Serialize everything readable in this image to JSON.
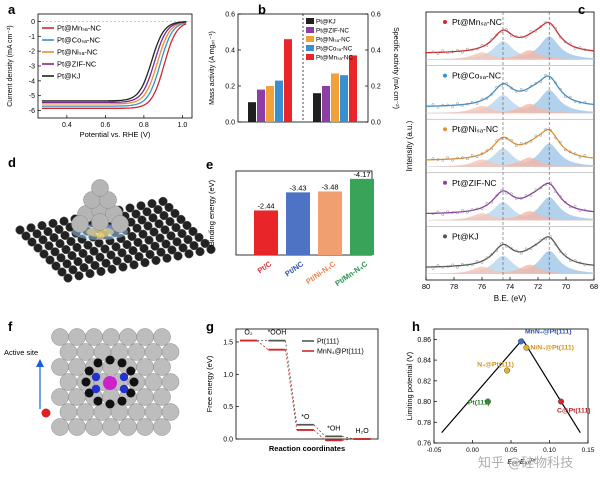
{
  "panels": {
    "a": {
      "label": "a",
      "chart": {
        "type": "line",
        "xlabel": "Potential vs. RHE (V)",
        "ylabel": "Current density (mA cm⁻²)",
        "xlim": [
          0.25,
          1.05
        ],
        "ylim": [
          -6.5,
          0.5
        ],
        "xticks": [
          "0.4",
          "0.6",
          "0.8",
          "1.0"
        ],
        "yticks": [
          "0",
          "-1",
          "-2",
          "-3",
          "-4",
          "-5",
          "-6"
        ],
        "legend_position": "top-left",
        "series": [
          {
            "name": "Pt@Mnₛₐ-NC",
            "color": "#d6262a",
            "limit": -5.85,
            "half_wave": 0.905
          },
          {
            "name": "Pt@Coₛₐ-NC",
            "color": "#3a8fd1",
            "limit": -5.7,
            "half_wave": 0.885
          },
          {
            "name": "Pt@Niₛₐ-NC",
            "color": "#e8902f",
            "limit": -5.55,
            "half_wave": 0.87
          },
          {
            "name": "Pt@ZIF-NC",
            "color": "#7b2a8c",
            "limit": -5.45,
            "half_wave": 0.855
          },
          {
            "name": "Pt@KJ",
            "color": "#222222",
            "limit": -5.35,
            "half_wave": 0.84
          }
        ]
      }
    },
    "b": {
      "label": "b",
      "chart": {
        "type": "bar",
        "ylabel_left": "Mass activity (A mgₚₜ⁻¹)",
        "ylabel_right": "Specific activity (mA cm⁻²)",
        "ylim_left": [
          0,
          0.6
        ],
        "ylim_right": [
          0,
          0.6
        ],
        "yticks_left": [
          "0.0",
          "0.2",
          "0.4",
          "0.6"
        ],
        "yticks_right": [
          "0.0",
          "0.2",
          "0.4",
          "0.6"
        ],
        "legend": [
          "Pt@KJ",
          "Pt@ZIF-NC",
          "Pt@Niₛₐ-NC",
          "Pt@Coₛₐ-NC",
          "Pt@Mnₛₐ-NC"
        ],
        "colors": [
          "#1f1f1f",
          "#8d3da6",
          "#f0a13a",
          "#3a8fd1",
          "#e8262a"
        ],
        "series": [
          {
            "group": "mass",
            "values": [
              0.11,
              0.18,
              0.2,
              0.23,
              0.46
            ]
          },
          {
            "group": "specific",
            "values": [
              0.16,
              0.2,
              0.27,
              0.26,
              0.37
            ]
          }
        ]
      }
    },
    "c": {
      "label": "c",
      "chart": {
        "type": "line",
        "xlabel": "B.E. (eV)",
        "ylabel": "Intensity (a.u.)",
        "xlim": [
          80,
          68
        ],
        "xticks": [
          "80",
          "78",
          "76",
          "74",
          "72",
          "70",
          "68"
        ],
        "peaks": [
          74.5,
          71.2
        ],
        "series": [
          {
            "name": "Pt@Mnₛₐ-NC",
            "color": "#d6262a"
          },
          {
            "name": "Pt@Coₛₐ-NC",
            "color": "#3a8fd1"
          },
          {
            "name": "Pt@Niₛₐ-NC",
            "color": "#e8902f"
          },
          {
            "name": "Pt@ZIF-NC",
            "color": "#8d3da6"
          },
          {
            "name": "Pt@KJ",
            "color": "#555555"
          }
        ]
      }
    },
    "d": {
      "label": "d"
    },
    "e": {
      "label": "e",
      "chart": {
        "type": "bar",
        "ylabel": "Binding energy (eV)",
        "ylim": [
          0,
          -4.6
        ],
        "categories": [
          "Pt/C",
          "Pt/NC",
          "Pt/Ni-N₄C",
          "Pt/Mn-N₄C"
        ],
        "values": [
          -2.44,
          -3.43,
          -3.48,
          -4.17
        ],
        "value_labels": [
          "-2.44",
          "-3.43",
          "-3.48",
          "-4.17"
        ],
        "colors": [
          "#e8262a",
          "#4f73c4",
          "#f0a070",
          "#3aa35a"
        ],
        "label_colors": [
          "#e03030",
          "#3355bb",
          "#f08050",
          "#2a9050"
        ]
      }
    },
    "f": {
      "label": "f",
      "annotation": "Active site"
    },
    "g": {
      "label": "g",
      "chart": {
        "type": "line",
        "xlabel": "Reaction coordinates",
        "ylabel": "Free energy (eV)",
        "ylim": [
          0,
          1.7
        ],
        "yticks": [
          "0.0",
          "0.5",
          "1.0",
          "1.5"
        ],
        "state_labels": [
          "O₂",
          "*OOH",
          "*O",
          "*OH",
          "H₂O"
        ],
        "series": [
          {
            "name": "Pt(111)",
            "color": "#555555",
            "values": [
              1.52,
              1.52,
              0.22,
              0.04,
              0.0
            ]
          },
          {
            "name": "MnN₄@Pt(111)",
            "color": "#d6262a",
            "values": [
              1.52,
              1.38,
              0.14,
              -0.02,
              0.0
            ]
          }
        ]
      }
    },
    "h": {
      "label": "h",
      "chart": {
        "type": "scatter",
        "ylabel": "Limiting potential (V)",
        "xlabel": "Eₒₕ-Eₒₕᴾᵗ",
        "xlim": [
          -0.05,
          0.15
        ],
        "ylim": [
          0.76,
          0.87
        ],
        "xticks": [
          "-0.05",
          "0.00",
          "0.05",
          "0.10",
          "0.15"
        ],
        "yticks": [
          "0.76",
          "0.78",
          "0.80",
          "0.82",
          "0.84",
          "0.86"
        ],
        "points": [
          {
            "name": "Pt(111)",
            "x": 0.02,
            "y": 0.8,
            "color": "#3a8f3a",
            "text_color": "#2a7a2a"
          },
          {
            "name": "N₄@Pt(111)",
            "x": 0.045,
            "y": 0.83,
            "color": "#e0b030",
            "text_color": "#d09020"
          },
          {
            "name": "MnN₄@Pt(111)",
            "x": 0.063,
            "y": 0.858,
            "color": "#3a6fd1",
            "text_color": "#2a4fb1"
          },
          {
            "name": "NiN₄@Pt(111)",
            "x": 0.07,
            "y": 0.852,
            "color": "#e0b030",
            "text_color": "#d09020"
          },
          {
            "name": "C@Pt(111)",
            "x": 0.115,
            "y": 0.8,
            "color": "#d6262a",
            "text_color": "#c02020"
          }
        ],
        "apex": {
          "x": 0.065,
          "y": 0.86
        }
      }
    }
  },
  "watermark": "知乎 @硅物科技"
}
